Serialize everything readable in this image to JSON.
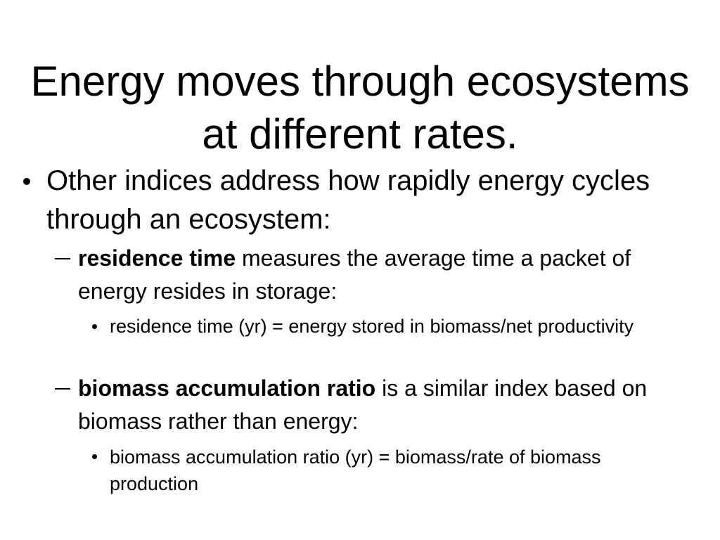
{
  "slide": {
    "title": "Energy moves through ecosystems at different rates.",
    "bullet": "Other indices address how rapidly energy cycles through an ecosystem:",
    "items": [
      {
        "term": "residence time",
        "text": " measures the average time a packet of energy resides in storage:",
        "detail": "residence time (yr) = energy stored in biomass/net productivity"
      },
      {
        "term": "biomass accumulation ratio",
        "text": " is a similar index based on biomass rather than energy:",
        "detail": "biomass accumulation ratio (yr) = biomass/rate of biomass production"
      }
    ]
  }
}
